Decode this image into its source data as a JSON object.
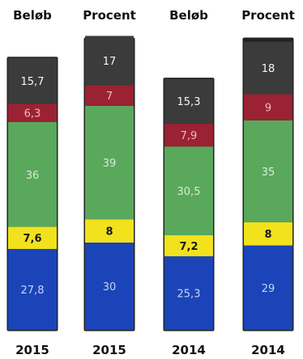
{
  "chart_data": {
    "type": "bar",
    "stacked": true,
    "columns": [
      {
        "title": "Beløb",
        "year": "2015",
        "total": 93.4,
        "segments": [
          27.8,
          7.6,
          36,
          6.3,
          15.7
        ],
        "labels": [
          "27,8",
          "7,6",
          "36",
          "6,3",
          "15,7"
        ]
      },
      {
        "title": "Procent",
        "year": "2015",
        "total": 100,
        "segments": [
          30,
          8,
          39,
          7,
          17
        ],
        "labels": [
          "30",
          "8",
          "39",
          "7",
          "17"
        ]
      },
      {
        "title": "Beløb",
        "year": "2014",
        "total": 86.2,
        "segments": [
          25.3,
          7.2,
          30.5,
          7.9,
          15.3
        ],
        "labels": [
          "25,3",
          "7,2",
          "30,5",
          "7,9",
          "15,3"
        ]
      },
      {
        "title": "Procent",
        "year": "2014",
        "total": 100,
        "segments": [
          29,
          8,
          35,
          9,
          18
        ],
        "labels": [
          "29",
          "8",
          "35",
          "9",
          "18"
        ]
      }
    ],
    "segment_colors": [
      "#1a44b8",
      "#f2e21d",
      "#5aa85c",
      "#9a2233",
      "#3b3b3b"
    ],
    "label_colors": [
      "#c9d4f0",
      "#1a1a1a",
      "#d8ecd6",
      "#f3b9b9",
      "#f5f5f5"
    ]
  }
}
